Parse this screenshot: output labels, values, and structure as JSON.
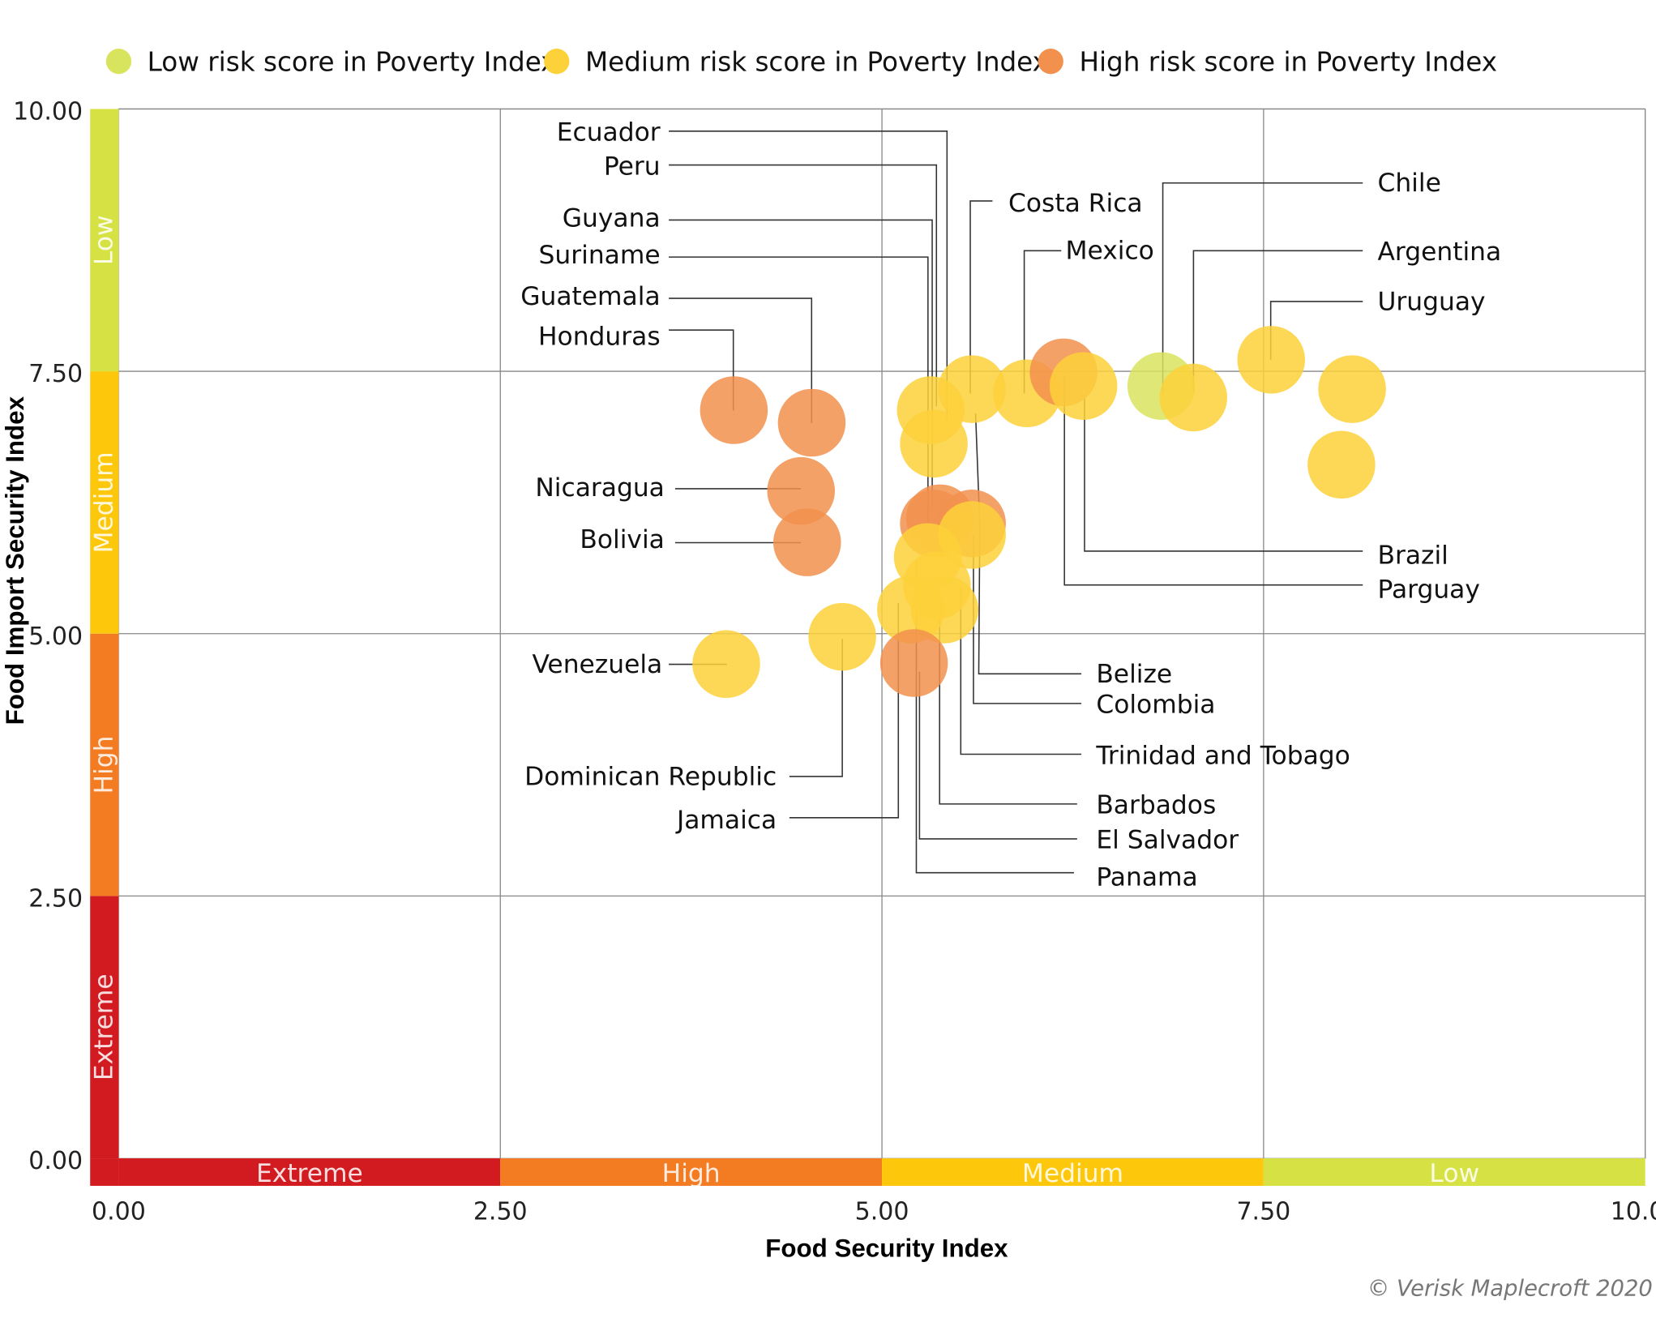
{
  "chart_data": {
    "type": "scatter",
    "title": "",
    "xlabel": "Food Security Index",
    "ylabel": "Food Import Security Index",
    "xlim": [
      0,
      10
    ],
    "ylim": [
      0,
      10
    ],
    "xticks": [
      "0.00",
      "2.50",
      "5.00",
      "7.50",
      "10.00"
    ],
    "yticks": [
      "0.00",
      "2.50",
      "5.00",
      "7.50",
      "10.00"
    ],
    "grid": true,
    "legend_position": "top",
    "bands": [
      {
        "label": "Extreme",
        "from": 0,
        "to": 2.5,
        "color": "#d21b21"
      },
      {
        "label": "High",
        "from": 2.5,
        "to": 5,
        "color": "#f37b22"
      },
      {
        "label": "Medium",
        "from": 5,
        "to": 7.5,
        "color": "#fdc70c"
      },
      {
        "label": "Low",
        "from": 7.5,
        "to": 10,
        "color": "#d6e143"
      }
    ],
    "series": [
      {
        "key": "low",
        "name": "Low risk score in Poverty Index",
        "color": "#d9e45e"
      },
      {
        "key": "medium",
        "name": "Medium risk score in Poverty Index",
        "color": "#fdd13a"
      },
      {
        "key": "high",
        "name": "High risk score in Poverty Index",
        "color": "#f2904e"
      }
    ],
    "points": [
      {
        "label": "Honduras",
        "x": 4.03,
        "y": 7.13,
        "risk": "high"
      },
      {
        "label": "Guatemala",
        "x": 4.54,
        "y": 7.01,
        "risk": "high"
      },
      {
        "label": "Nicaragua",
        "x": 4.47,
        "y": 6.36,
        "risk": "high"
      },
      {
        "label": "Bolivia",
        "x": 4.51,
        "y": 5.87,
        "risk": "high"
      },
      {
        "label": "Venezuela",
        "x": 3.98,
        "y": 4.71,
        "risk": "medium"
      },
      {
        "label": "Dominican Republic",
        "x": 4.74,
        "y": 4.97,
        "risk": "medium"
      },
      {
        "label": "Peru",
        "x": 5.32,
        "y": 7.13,
        "risk": "medium"
      },
      {
        "label": "Costa Rica",
        "x": 5.59,
        "y": 7.33,
        "risk": "medium"
      },
      {
        "label": "Ecuador",
        "x": 5.34,
        "y": 6.81,
        "risk": "medium"
      },
      {
        "label": "Mexico",
        "x": 5.95,
        "y": 7.29,
        "risk": "medium"
      },
      {
        "label": "Parguay",
        "x": 6.19,
        "y": 7.49,
        "risk": "high"
      },
      {
        "label": "Brazil",
        "x": 6.32,
        "y": 7.36,
        "risk": "medium"
      },
      {
        "label": "Chile",
        "x": 6.83,
        "y": 7.36,
        "risk": "low"
      },
      {
        "label": "Argentina",
        "x": 7.04,
        "y": 7.25,
        "risk": "medium"
      },
      {
        "label": "Uruguay",
        "x": 7.55,
        "y": 7.61,
        "risk": "medium"
      },
      {
        "label": "",
        "x": 8.08,
        "y": 7.33,
        "risk": "medium"
      },
      {
        "label": "",
        "x": 8.01,
        "y": 6.61,
        "risk": "medium"
      },
      {
        "label": "Guyana",
        "x": 5.34,
        "y": 6.05,
        "risk": "high"
      },
      {
        "label": "Suriname",
        "x": 5.38,
        "y": 6.1,
        "risk": "high"
      },
      {
        "label": "Belize",
        "x": 5.59,
        "y": 6.05,
        "risk": "high"
      },
      {
        "label": "Colombia",
        "x": 5.59,
        "y": 5.94,
        "risk": "medium"
      },
      {
        "label": "Panama",
        "x": 5.3,
        "y": 5.73,
        "risk": "medium"
      },
      {
        "label": "Barbados",
        "x": 5.36,
        "y": 5.46,
        "risk": "medium"
      },
      {
        "label": "Jamaica",
        "x": 5.19,
        "y": 5.23,
        "risk": "medium"
      },
      {
        "label": "Trinidad and Tobago",
        "x": 5.41,
        "y": 5.23,
        "risk": "medium"
      },
      {
        "label": "El Salvador",
        "x": 5.21,
        "y": 4.72,
        "risk": "high"
      }
    ]
  },
  "credit": "© Verisk Maplecroft 2020"
}
